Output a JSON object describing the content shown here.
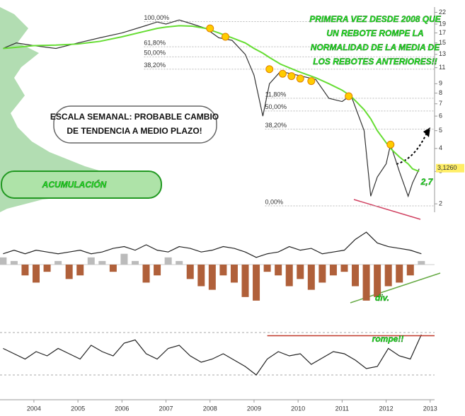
{
  "chart_data": [
    {
      "type": "line",
      "log_scale": true,
      "xlim": [
        2003.23,
        2013.1
      ],
      "ylim": [
        1.8,
        23.5
      ],
      "yticks": [
        2,
        3,
        4,
        5,
        6,
        7,
        8,
        9,
        11,
        13,
        15,
        17,
        19,
        22
      ],
      "x": [
        2003.3,
        2003.6,
        2004,
        2004.5,
        2005,
        2005.5,
        2006,
        2006.5,
        2006.8,
        2007,
        2007.3,
        2007.6,
        2007.9,
        2008.2,
        2008.5,
        2008.8,
        2009,
        2009.2,
        2009.35,
        2009.6,
        2010,
        2010.4,
        2010.7,
        2011,
        2011.2,
        2011.5,
        2011.65,
        2011.8,
        2012,
        2012.1,
        2012.3,
        2012.5,
        2012.6,
        2012.75
      ],
      "series": [
        {
          "color": "#333333",
          "values": [
            14,
            15,
            14.5,
            14,
            15,
            16,
            17,
            18.5,
            19.5,
            19,
            20,
            19,
            18,
            16,
            15.5,
            13,
            10,
            6,
            9,
            10.5,
            10,
            9.5,
            7.5,
            7.2,
            7.8,
            5,
            2.2,
            2.8,
            3.3,
            4.2,
            3,
            2.2,
            2.6,
            3.1
          ]
        },
        {
          "color": "#66dd33",
          "values": [
            14,
            14.2,
            14.5,
            14.6,
            14.8,
            15.3,
            16.2,
            17.3,
            18,
            18.3,
            18.6,
            18.5,
            18,
            17,
            16,
            15,
            14,
            13.2,
            12.5,
            11.5,
            10.5,
            9.7,
            9,
            8.3,
            7.7,
            6.5,
            5.8,
            5,
            4.3,
            4,
            3.6,
            3.3,
            3.1,
            3.0
          ]
        }
      ],
      "touch_points": {
        "color": "#ffcc00",
        "x": [
          2008.0,
          2008.35,
          2009.35,
          2009.65,
          2009.85,
          2010.05,
          2010.3,
          2011.15,
          2012.1
        ],
        "values": [
          18,
          16.2,
          10.8,
          10.2,
          9.9,
          9.6,
          9.3,
          7.7,
          4.2
        ]
      },
      "fib_levels": [
        {
          "value": 19.6,
          "label": "100,00%"
        },
        {
          "value": 14.3,
          "label": "61,80%"
        },
        {
          "value": 12.6,
          "label": "50,00%"
        },
        {
          "value": 10.8,
          "label": "38,20%"
        },
        {
          "value": 7.5,
          "label": "11,80%"
        },
        {
          "value": 6.4,
          "label": "50,00%"
        },
        {
          "value": 5.1,
          "label": "38,20%"
        },
        {
          "value": 1.95,
          "label": "0,00%"
        }
      ],
      "last_value": {
        "value": 3.126,
        "label": "3,1260"
      },
      "annotations": [
        "PRIMERA VEZ DESDE 2008 QUE",
        "UN REBOTE ROMPE LA",
        "NORMALIDAD DE LA MEDIA DE",
        "LOS REBOTES ANTERIORES!!",
        "ESCALA SEMANAL: PROBABLE CAMBIO",
        "DE TENDENCIA A MEDIO PLAZO!",
        "ACUMULACIÓN",
        "2,7"
      ]
    },
    {
      "type": "bar",
      "xlim": [
        2003.23,
        2013.1
      ],
      "ylim": [
        -1.1,
        1.1
      ],
      "x": [
        2003.3,
        2003.55,
        2003.8,
        2004.05,
        2004.3,
        2004.55,
        2004.8,
        2005.05,
        2005.3,
        2005.55,
        2005.8,
        2006.05,
        2006.3,
        2006.55,
        2006.8,
        2007.05,
        2007.3,
        2007.55,
        2007.8,
        2008.05,
        2008.3,
        2008.55,
        2008.8,
        2009.05,
        2009.3,
        2009.55,
        2009.8,
        2010.05,
        2010.3,
        2010.55,
        2010.8,
        2011.05,
        2011.3,
        2011.55,
        2011.8,
        2012.05,
        2012.3,
        2012.55,
        2012.8
      ],
      "series": [
        {
          "color": "#b0603a",
          "values": [
            0.2,
            0.1,
            -0.3,
            -0.5,
            -0.2,
            0.1,
            -0.4,
            -0.3,
            0.2,
            0.1,
            -0.2,
            0.3,
            0.1,
            -0.5,
            -0.3,
            0.2,
            0.1,
            -0.4,
            -0.6,
            -0.7,
            -0.3,
            -0.5,
            -0.9,
            -1,
            -0.2,
            -0.3,
            -0.6,
            -0.4,
            -0.7,
            -0.5,
            -0.3,
            -0.2,
            -0.6,
            -1,
            -0.9,
            -0.6,
            -0.5,
            -0.3,
            0.1
          ]
        },
        {
          "color": "#222222",
          "values": [
            0.3,
            0.4,
            0.3,
            0.4,
            0.35,
            0.3,
            0.35,
            0.4,
            0.3,
            0.35,
            0.45,
            0.5,
            0.4,
            0.55,
            0.4,
            0.35,
            0.5,
            0.45,
            0.35,
            0.4,
            0.5,
            0.45,
            0.35,
            0.2,
            0.3,
            0.35,
            0.5,
            0.4,
            0.45,
            0.3,
            0.35,
            0.4,
            0.7,
            0.9,
            0.6,
            0.5,
            0.45,
            0.4,
            0.3
          ]
        }
      ],
      "annotations": [
        "div."
      ]
    },
    {
      "type": "line",
      "xlim": [
        2003.23,
        2013.1
      ],
      "ylim": [
        20,
        80
      ],
      "x": [
        2003.3,
        2003.55,
        2003.8,
        2004.05,
        2004.3,
        2004.55,
        2004.8,
        2005.05,
        2005.3,
        2005.55,
        2005.8,
        2006.05,
        2006.3,
        2006.55,
        2006.8,
        2007.05,
        2007.3,
        2007.55,
        2007.8,
        2008.05,
        2008.3,
        2008.55,
        2008.8,
        2009.05,
        2009.3,
        2009.55,
        2009.8,
        2010.05,
        2010.3,
        2010.55,
        2010.8,
        2011.05,
        2011.3,
        2011.55,
        2011.8,
        2012.05,
        2012.3,
        2012.55,
        2012.8
      ],
      "series": [
        {
          "color": "#222222",
          "values": [
            55,
            50,
            45,
            52,
            48,
            55,
            50,
            45,
            58,
            52,
            48,
            60,
            63,
            50,
            45,
            55,
            58,
            48,
            42,
            45,
            50,
            44,
            38,
            30,
            45,
            52,
            48,
            50,
            40,
            46,
            52,
            50,
            44,
            36,
            38,
            55,
            48,
            45,
            68
          ]
        }
      ],
      "reference_lines": [
        70,
        30
      ],
      "level": {
        "value": 67,
        "color": "#c0392b",
        "from": 2009.3
      },
      "xticks": [
        2004,
        2005,
        2006,
        2007,
        2008,
        2009,
        2010,
        2011,
        2012,
        2013
      ],
      "annotations": [
        "rompe!!"
      ]
    }
  ]
}
